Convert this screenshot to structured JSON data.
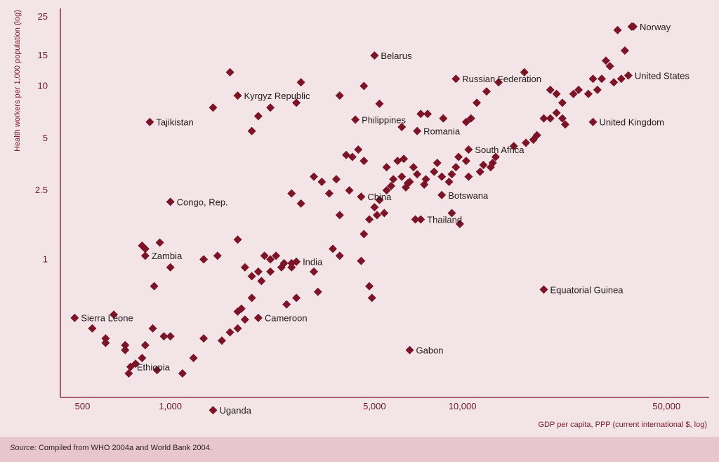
{
  "chart_data": {
    "type": "scatter",
    "title": "",
    "xlabel": "GDP per capita, PPP (current international $, log)",
    "ylabel": "Health workers per 1,000 population (log)",
    "x_scale": "log",
    "y_scale": "log",
    "xlim": [
      420,
      70000
    ],
    "ylim": [
      0.16,
      28
    ],
    "x_ticks": [
      {
        "value": 500,
        "label": "500"
      },
      {
        "value": 1000,
        "label": "1,000"
      },
      {
        "value": 5000,
        "label": "5,000"
      },
      {
        "value": 10000,
        "label": "10,000"
      },
      {
        "value": 50000,
        "label": "50,000"
      }
    ],
    "y_ticks": [
      {
        "value": 1,
        "label": "1"
      },
      {
        "value": 2.5,
        "label": "2.5"
      },
      {
        "value": 5,
        "label": "5"
      },
      {
        "value": 10,
        "label": "10"
      },
      {
        "value": 15,
        "label": "15"
      },
      {
        "value": 25,
        "label": "25"
      }
    ],
    "grid": false,
    "marker": "diamond",
    "marker_color": "#7a1426",
    "axis_color": "#7a1426",
    "labeled_points": [
      {
        "label": "Norway",
        "x": 38500,
        "y": 22
      },
      {
        "label": "Belarus",
        "x": 5000,
        "y": 15
      },
      {
        "label": "Russian Federation",
        "x": 9500,
        "y": 11
      },
      {
        "label": "United States",
        "x": 37000,
        "y": 11.5
      },
      {
        "label": "Kyrgyz Republic",
        "x": 1700,
        "y": 8.8
      },
      {
        "label": "Philippines",
        "x": 4300,
        "y": 6.4
      },
      {
        "label": "Tajikistan",
        "x": 850,
        "y": 6.2
      },
      {
        "label": "United Kingdom",
        "x": 28000,
        "y": 6.2
      },
      {
        "label": "Romania",
        "x": 7000,
        "y": 5.5
      },
      {
        "label": "South Africa",
        "x": 10500,
        "y": 4.3
      },
      {
        "label": "China",
        "x": 4500,
        "y": 2.3
      },
      {
        "label": "Botswana",
        "x": 8500,
        "y": 2.35
      },
      {
        "label": "Congo, Rep.",
        "x": 1000,
        "y": 2.15
      },
      {
        "label": "Thailand",
        "x": 7200,
        "y": 1.7
      },
      {
        "label": "Zambia",
        "x": 820,
        "y": 1.05
      },
      {
        "label": "India",
        "x": 2700,
        "y": 0.97
      },
      {
        "label": "Equatorial Guinea",
        "x": 19000,
        "y": 0.67
      },
      {
        "label": "Sierra Leone",
        "x": 470,
        "y": 0.46
      },
      {
        "label": "Cameroon",
        "x": 2000,
        "y": 0.46
      },
      {
        "label": "Gabon",
        "x": 6600,
        "y": 0.3
      },
      {
        "label": "Ethiopia",
        "x": 730,
        "y": 0.24
      },
      {
        "label": "Uganda",
        "x": 1400,
        "y": 0.135
      }
    ],
    "points": [
      [
        34000,
        21
      ],
      [
        38000,
        22
      ],
      [
        31000,
        14
      ],
      [
        32000,
        13
      ],
      [
        30000,
        11
      ],
      [
        28000,
        11
      ],
      [
        33000,
        10.5
      ],
      [
        29000,
        9.5
      ],
      [
        27000,
        9
      ],
      [
        35000,
        11
      ],
      [
        36000,
        16
      ],
      [
        25000,
        9.5
      ],
      [
        24000,
        9
      ],
      [
        22000,
        8
      ],
      [
        21000,
        7
      ],
      [
        20000,
        6.5
      ],
      [
        22500,
        6
      ],
      [
        19000,
        6.5
      ],
      [
        18000,
        5.2
      ],
      [
        17500,
        4.9
      ],
      [
        16500,
        4.7
      ],
      [
        15000,
        4.5
      ],
      [
        13000,
        3.9
      ],
      [
        12500,
        3.4
      ],
      [
        11500,
        3.2
      ],
      [
        10500,
        3.0
      ],
      [
        9500,
        3.4
      ],
      [
        9200,
        3.1
      ],
      [
        9000,
        2.8
      ],
      [
        8500,
        3.0
      ],
      [
        8000,
        3.2
      ],
      [
        7500,
        2.9
      ],
      [
        7000,
        3.1
      ],
      [
        6600,
        2.8
      ],
      [
        6400,
        2.6
      ],
      [
        6200,
        3.0
      ],
      [
        6000,
        3.7
      ],
      [
        5800,
        2.9
      ],
      [
        5500,
        2.5
      ],
      [
        5200,
        2.2
      ],
      [
        5000,
        2.0
      ],
      [
        4800,
        1.7
      ],
      [
        4600,
        1.4
      ],
      [
        3800,
        1.8
      ],
      [
        3500,
        2.4
      ],
      [
        3300,
        2.8
      ],
      [
        3100,
        3.0
      ],
      [
        2800,
        2.1
      ],
      [
        2600,
        2.4
      ],
      [
        4000,
        4.0
      ],
      [
        4200,
        3.9
      ],
      [
        4400,
        4.3
      ],
      [
        4600,
        3.7
      ],
      [
        5500,
        3.4
      ],
      [
        6300,
        3.8
      ],
      [
        6800,
        3.4
      ],
      [
        8200,
        3.6
      ],
      [
        9700,
        3.9
      ],
      [
        10300,
        3.7
      ],
      [
        11800,
        3.5
      ],
      [
        12700,
        3.6
      ],
      [
        6500,
        2.75
      ],
      [
        7400,
        2.7
      ],
      [
        5700,
        2.65
      ],
      [
        3700,
        2.9
      ],
      [
        4100,
        2.5
      ],
      [
        6900,
        1.7
      ],
      [
        9800,
        1.6
      ],
      [
        9200,
        1.85
      ],
      [
        5100,
        1.8
      ],
      [
        5400,
        1.85
      ],
      [
        2700,
        8.0
      ],
      [
        2200,
        7.5
      ],
      [
        2000,
        6.7
      ],
      [
        1900,
        5.5
      ],
      [
        1400,
        7.5
      ],
      [
        1600,
        12
      ],
      [
        2800,
        10.5
      ],
      [
        3800,
        8.8
      ],
      [
        4600,
        10
      ],
      [
        5200,
        7.9
      ],
      [
        6200,
        5.8
      ],
      [
        7200,
        6.9
      ],
      [
        7600,
        6.9
      ],
      [
        8600,
        6.5
      ],
      [
        10300,
        6.2
      ],
      [
        10700,
        6.5
      ],
      [
        11200,
        8.0
      ],
      [
        12100,
        9.3
      ],
      [
        13300,
        10.5
      ],
      [
        16300,
        12
      ],
      [
        20000,
        9.5
      ],
      [
        21000,
        9
      ],
      [
        22000,
        6.5
      ],
      [
        1700,
        1.3
      ],
      [
        1800,
        0.9
      ],
      [
        2000,
        0.85
      ],
      [
        2200,
        1.0
      ],
      [
        2100,
        1.05
      ],
      [
        2400,
        0.9
      ],
      [
        2600,
        0.95
      ],
      [
        1900,
        0.8
      ],
      [
        2050,
        0.75
      ],
      [
        2200,
        0.85
      ],
      [
        2300,
        1.05
      ],
      [
        2450,
        0.95
      ],
      [
        2600,
        0.9
      ],
      [
        3100,
        0.85
      ],
      [
        3600,
        1.15
      ],
      [
        3800,
        1.05
      ],
      [
        4500,
        0.98
      ],
      [
        4800,
        0.7
      ],
      [
        3200,
        0.65
      ],
      [
        2700,
        0.6
      ],
      [
        2500,
        0.55
      ],
      [
        1750,
        0.52
      ],
      [
        1700,
        0.5
      ],
      [
        1900,
        0.6
      ],
      [
        1800,
        0.45
      ],
      [
        1600,
        0.38
      ],
      [
        1500,
        0.34
      ],
      [
        1700,
        0.4
      ],
      [
        1300,
        0.35
      ],
      [
        1200,
        0.27
      ],
      [
        1100,
        0.22
      ],
      [
        1000,
        0.36
      ],
      [
        950,
        0.36
      ],
      [
        870,
        0.4
      ],
      [
        820,
        0.32
      ],
      [
        800,
        0.27
      ],
      [
        760,
        0.25
      ],
      [
        720,
        0.22
      ],
      [
        700,
        0.3
      ],
      [
        640,
        0.48
      ],
      [
        600,
        0.33
      ],
      [
        600,
        0.35
      ],
      [
        540,
        0.4
      ],
      [
        800,
        1.2
      ],
      [
        820,
        1.15
      ],
      [
        920,
        1.25
      ],
      [
        1000,
        0.9
      ],
      [
        880,
        0.7
      ],
      [
        900,
        0.23
      ],
      [
        700,
        0.32
      ],
      [
        1450,
        1.05
      ],
      [
        1300,
        1.0
      ],
      [
        4900,
        0.6
      ]
    ]
  },
  "source": {
    "prefix": "Source:",
    "text": " Compiled from WHO 2004a and World Bank 2004."
  }
}
